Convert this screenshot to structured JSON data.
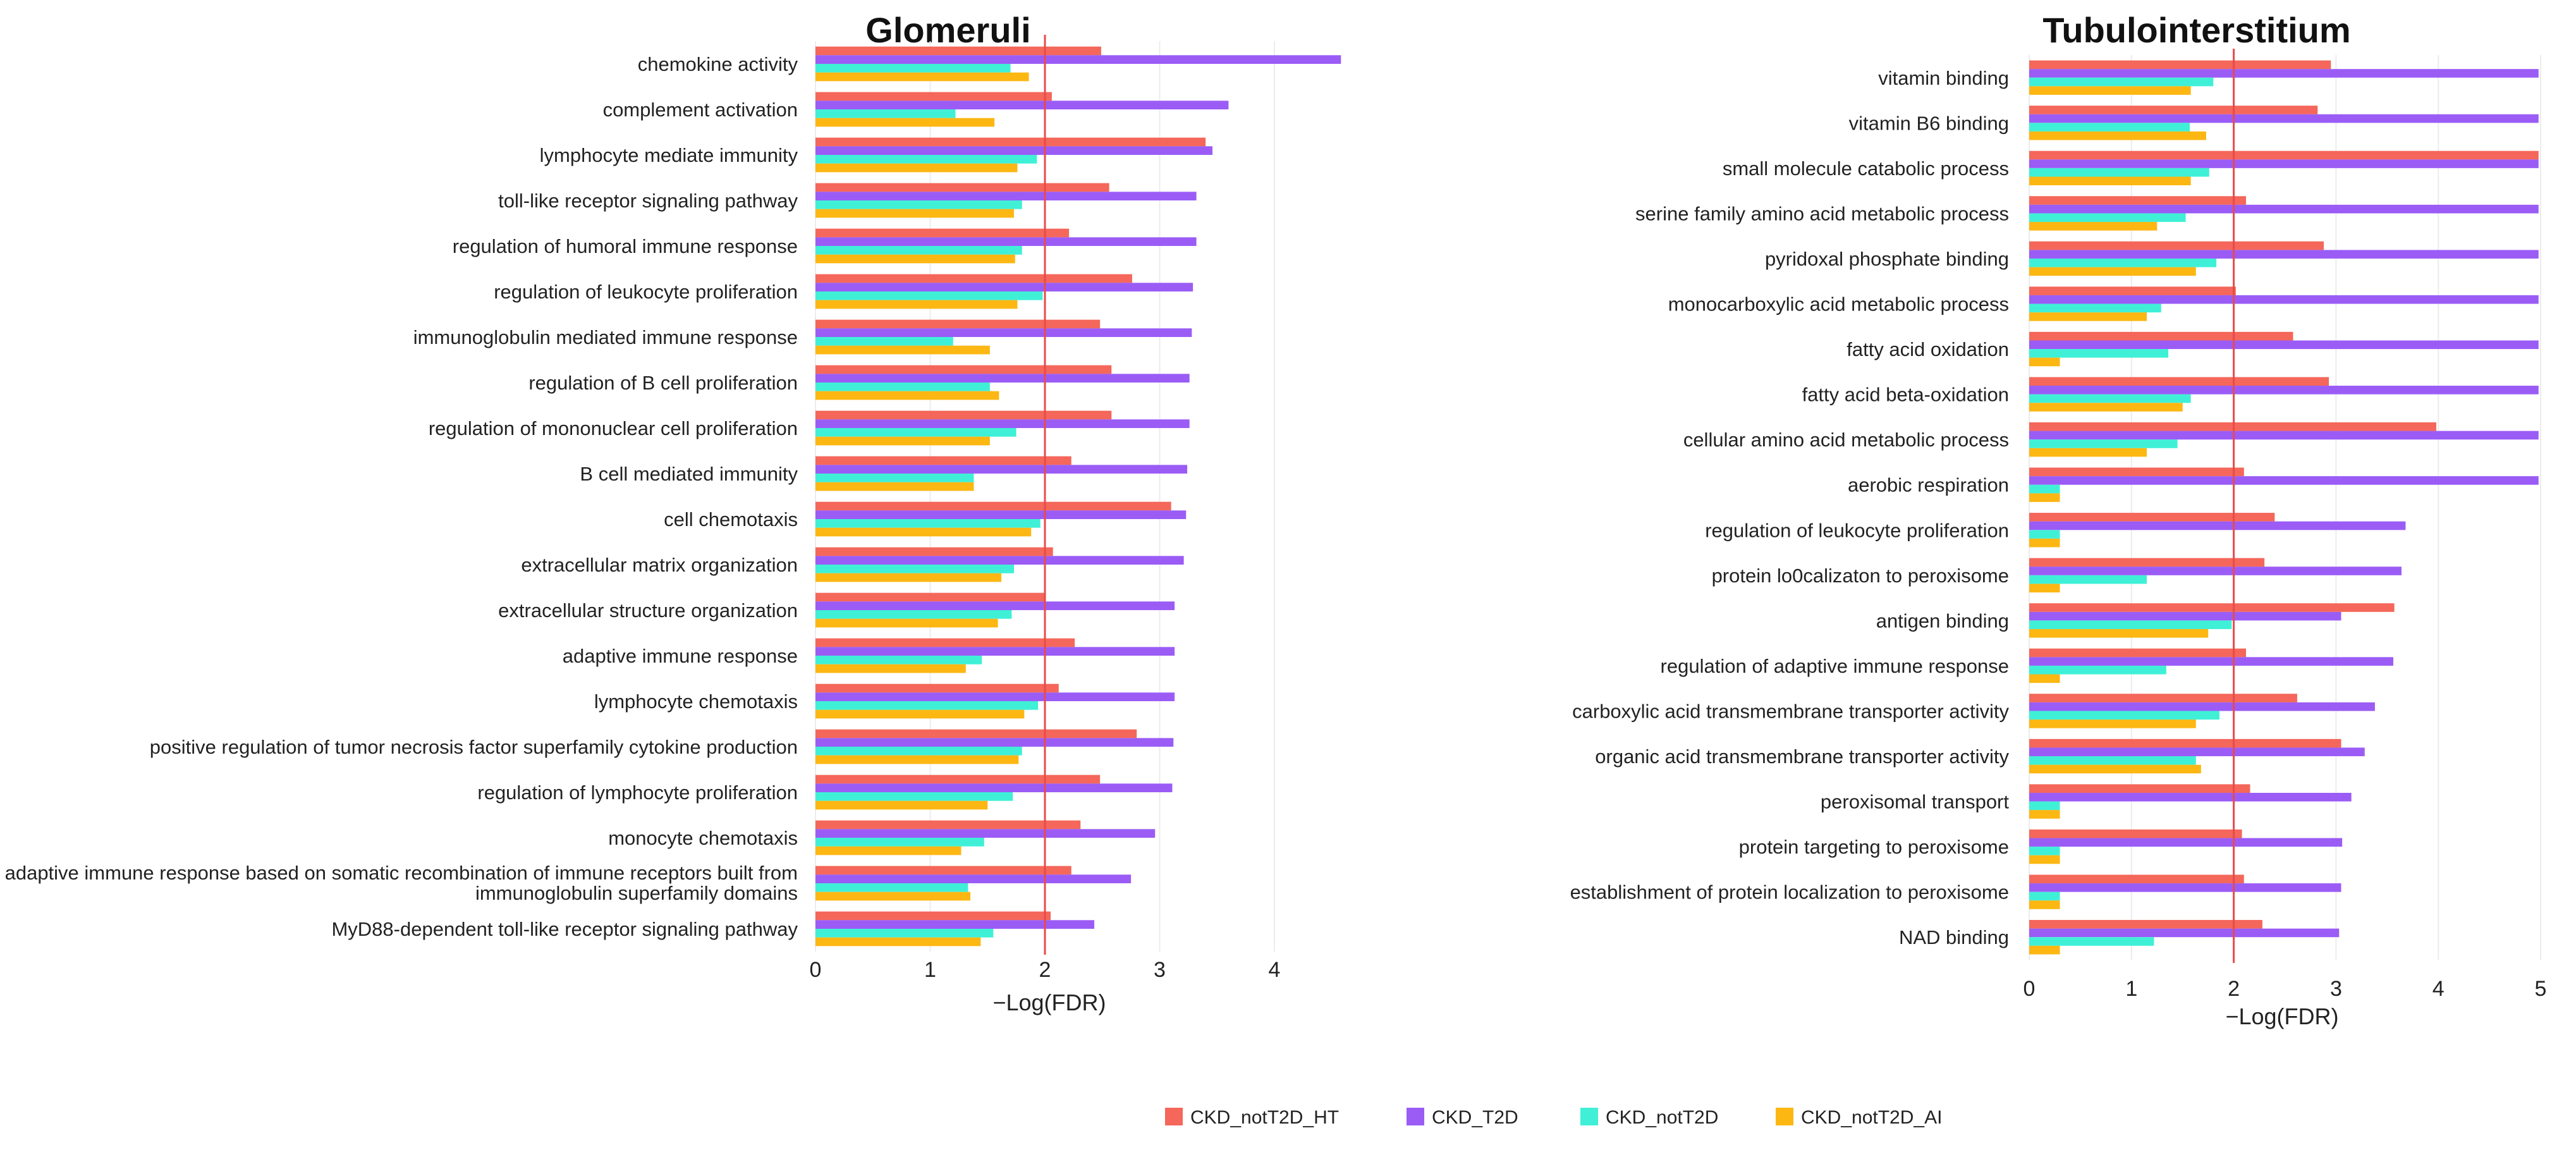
{
  "chart_data": [
    {
      "type": "bar",
      "orientation": "horizontal",
      "title": "Glomeruli",
      "xlabel": "−Log(FDR)",
      "ylabel": "",
      "xlim": [
        0,
        4.6
      ],
      "xticks": [
        0,
        1,
        2,
        3,
        4
      ],
      "threshold_line": 2.0,
      "grid": true,
      "categories": [
        [
          "chemokine activity"
        ],
        [
          "complement activation"
        ],
        [
          "lymphocyte mediate immunity"
        ],
        [
          "toll-like receptor signaling pathway"
        ],
        [
          "regulation of humoral immune response"
        ],
        [
          "regulation of leukocyte proliferation"
        ],
        [
          "immunoglobulin mediated immune response"
        ],
        [
          "regulation of B cell proliferation"
        ],
        [
          "regulation of mononuclear cell proliferation"
        ],
        [
          "B cell mediated immunity"
        ],
        [
          "cell chemotaxis"
        ],
        [
          "extracellular matrix organization"
        ],
        [
          "extracellular structure organization"
        ],
        [
          "adaptive immune response"
        ],
        [
          "lymphocyte chemotaxis"
        ],
        [
          "positive regulation of tumor necrosis factor superfamily cytokine production"
        ],
        [
          "regulation of lymphocyte proliferation"
        ],
        [
          "monocyte chemotaxis"
        ],
        [
          "adaptive immune response based on somatic recombination of immune receptors built from",
          "immunoglobulin superfamily domains"
        ],
        [
          "MyD88-dependent toll-like receptor signaling pathway"
        ]
      ],
      "series": [
        {
          "name": "CKD_notT2D_HT",
          "values": [
            2.49,
            2.06,
            3.4,
            2.56,
            2.21,
            2.76,
            2.48,
            2.58,
            2.58,
            2.23,
            3.1,
            2.07,
            2.0,
            2.26,
            2.12,
            2.8,
            2.48,
            2.31,
            2.23,
            2.05
          ]
        },
        {
          "name": "CKD_T2D",
          "values": [
            4.58,
            3.6,
            3.46,
            3.32,
            3.32,
            3.29,
            3.28,
            3.26,
            3.26,
            3.24,
            3.23,
            3.21,
            3.13,
            3.13,
            3.13,
            3.12,
            3.11,
            2.96,
            2.75,
            2.43
          ]
        },
        {
          "name": "CKD_notT2D",
          "values": [
            1.7,
            1.22,
            1.93,
            1.8,
            1.8,
            1.98,
            1.2,
            1.52,
            1.75,
            1.38,
            1.96,
            1.73,
            1.71,
            1.45,
            1.94,
            1.8,
            1.72,
            1.47,
            1.33,
            1.55
          ]
        },
        {
          "name": "CKD_notT2D_AI",
          "values": [
            1.86,
            1.56,
            1.76,
            1.73,
            1.74,
            1.76,
            1.52,
            1.6,
            1.52,
            1.38,
            1.88,
            1.62,
            1.59,
            1.31,
            1.82,
            1.77,
            1.5,
            1.27,
            1.35,
            1.44
          ]
        }
      ]
    },
    {
      "type": "bar",
      "orientation": "horizontal",
      "title": "Tubulointerstitium",
      "xlabel": "−Log(FDR)",
      "ylabel": "",
      "xlim": [
        0,
        5
      ],
      "xticks": [
        0,
        1,
        2,
        3,
        4,
        5
      ],
      "threshold_line": 2.0,
      "grid": true,
      "categories": [
        [
          "vitamin binding"
        ],
        [
          "vitamin B6 binding"
        ],
        [
          "small molecule catabolic process"
        ],
        [
          "serine family amino acid metabolic process"
        ],
        [
          "pyridoxal phosphate binding"
        ],
        [
          "monocarboxylic acid metabolic process"
        ],
        [
          "fatty acid oxidation"
        ],
        [
          "fatty acid beta-oxidation"
        ],
        [
          "cellular amino acid metabolic process"
        ],
        [
          "aerobic respiration"
        ],
        [
          "regulation of leukocyte proliferation"
        ],
        [
          "protein lo0calizaton to peroxisome"
        ],
        [
          "antigen binding"
        ],
        [
          "regulation of adaptive immune response"
        ],
        [
          "carboxylic acid transmembrane transporter activity"
        ],
        [
          "organic acid transmembrane transporter activity"
        ],
        [
          "peroxisomal transport"
        ],
        [
          "protein targeting to peroxisome"
        ],
        [
          "establishment of protein localization to peroxisome"
        ],
        [
          "NAD binding"
        ]
      ],
      "series": [
        {
          "name": "CKD_notT2D_HT",
          "values": [
            2.95,
            2.82,
            4.98,
            2.12,
            2.88,
            2.02,
            2.58,
            2.93,
            3.98,
            2.1,
            2.4,
            2.3,
            3.57,
            2.12,
            2.62,
            3.05,
            2.16,
            2.08,
            2.1,
            2.28
          ]
        },
        {
          "name": "CKD_T2D",
          "values": [
            4.98,
            4.98,
            4.98,
            4.98,
            4.98,
            4.98,
            4.98,
            4.98,
            4.98,
            4.98,
            3.68,
            3.64,
            3.05,
            3.56,
            3.38,
            3.28,
            3.15,
            3.06,
            3.05,
            3.03
          ]
        },
        {
          "name": "CKD_notT2D",
          "values": [
            1.8,
            1.57,
            1.76,
            1.53,
            1.83,
            1.29,
            1.36,
            1.58,
            1.45,
            0.3,
            0.3,
            1.15,
            1.98,
            1.34,
            1.86,
            1.63,
            0.3,
            0.3,
            0.3,
            1.22
          ]
        },
        {
          "name": "CKD_notT2D_AI",
          "values": [
            1.58,
            1.73,
            1.58,
            1.25,
            1.63,
            1.15,
            0.3,
            1.5,
            1.15,
            0.3,
            0.3,
            0.3,
            1.75,
            0.3,
            1.63,
            1.68,
            0.3,
            0.3,
            0.3,
            0.3
          ]
        }
      ]
    }
  ],
  "legend": {
    "placement": "bottom-center",
    "items": [
      {
        "name": "CKD_notT2D_HT",
        "color": "#f4675a"
      },
      {
        "name": "CKD_T2D",
        "color": "#9b5cf6"
      },
      {
        "name": "CKD_notT2D",
        "color": "#3ff0d7"
      },
      {
        "name": "CKD_notT2D_AI",
        "color": "#fcb713"
      }
    ]
  },
  "colors": {
    "threshold": "#e84a4a",
    "grid": "#ececec"
  }
}
